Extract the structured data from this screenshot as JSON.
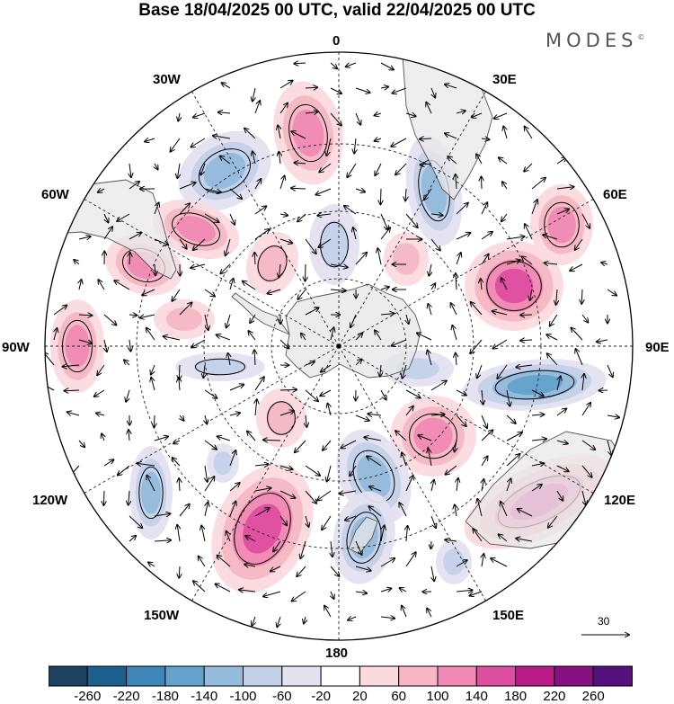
{
  "title": "Base 18/04/2025 00 UTC, valid 22/04/2025 00 UTC",
  "brand": "MODES",
  "brand_mark": "©",
  "map": {
    "projection": "south polar stereographic",
    "longitude_labels": {
      "top": "0",
      "bottom": "180",
      "upper_left": "30W",
      "upper_right": "30E",
      "left_upper": "60W",
      "right_upper": "60E",
      "left": "90W",
      "right": "90E",
      "left_lower": "120W",
      "right_lower": "120E",
      "lower_left": "150W",
      "lower_right": "150E"
    },
    "reference_vector": "30",
    "colors": {
      "negative_max": "#1b3f63",
      "positive_max": "#5a1279",
      "coast": "#555555",
      "land": "#e4e4e4"
    }
  },
  "colorbar": {
    "tick_labels": [
      "-260",
      "-220",
      "-180",
      "-140",
      "-100",
      "-60",
      "-20",
      "20",
      "60",
      "100",
      "140",
      "180",
      "220",
      "260"
    ],
    "colors": [
      "#1d4260",
      "#1d5f8d",
      "#3c86b8",
      "#63a2cc",
      "#94bbdc",
      "#c3d1e8",
      "#e4e2f0",
      "#ffffff",
      "#fadadf",
      "#f5b7c5",
      "#f08ab4",
      "#de4ea0",
      "#b81a88",
      "#861282",
      "#55127c"
    ]
  }
}
